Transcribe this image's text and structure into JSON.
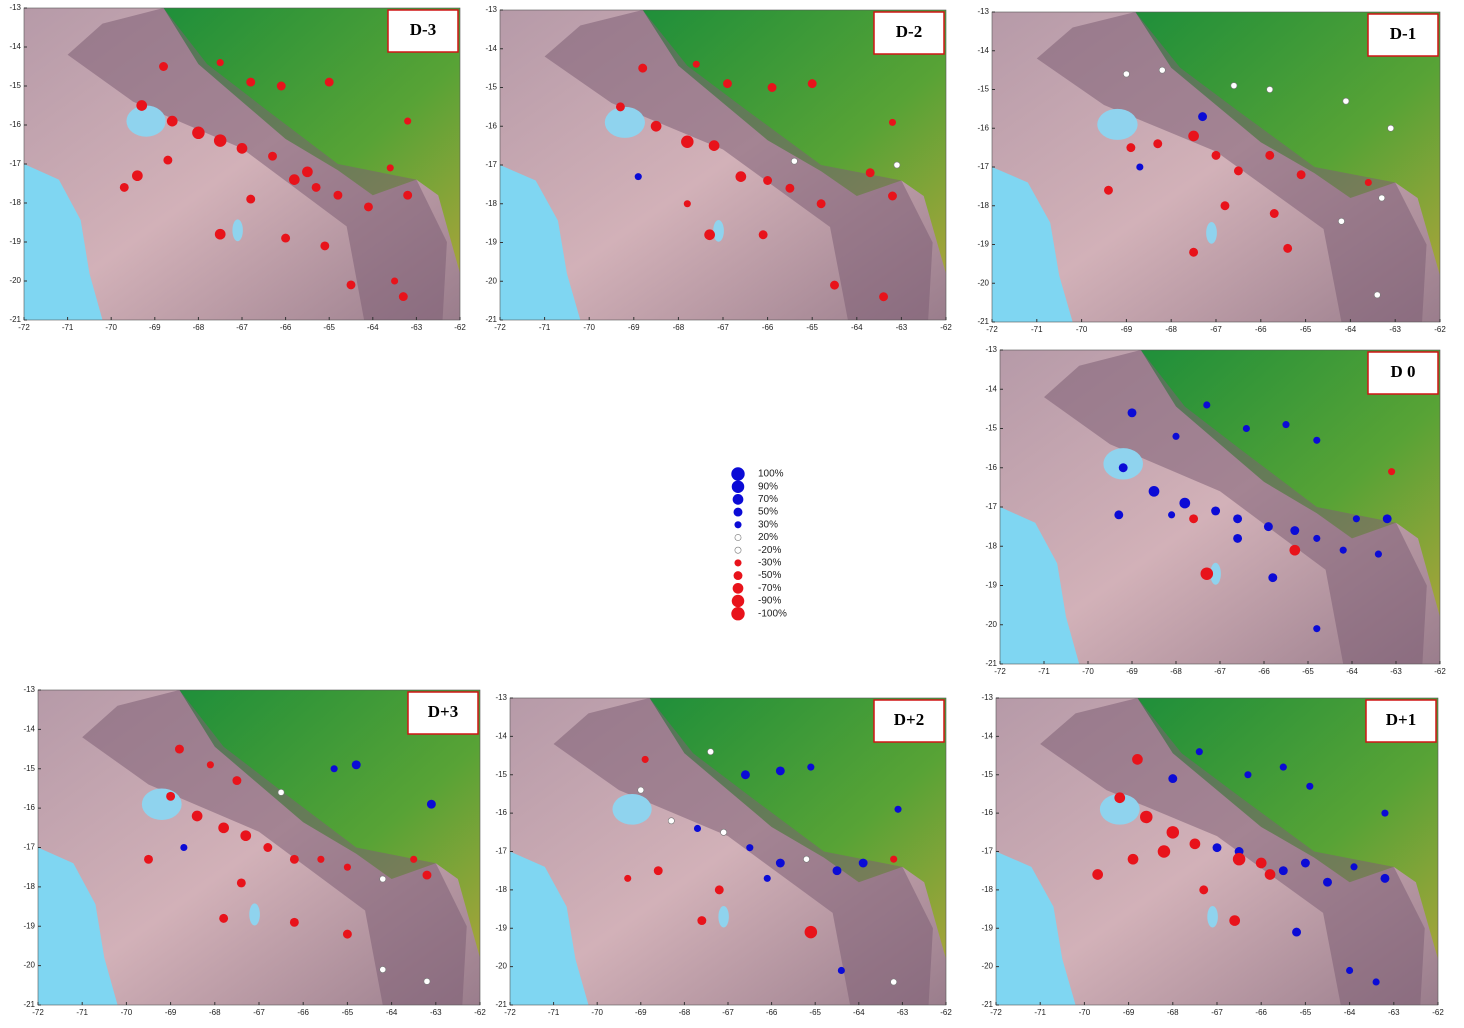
{
  "chart_data": [
    {
      "type": "scatter",
      "title": "D-3",
      "xlim": [
        -72,
        -62
      ],
      "ylim": [
        -21,
        -13
      ],
      "xticks": [
        -72,
        -71,
        -70,
        -69,
        -68,
        -67,
        -66,
        -65,
        -64,
        -63,
        -62
      ],
      "yticks": [
        -13,
        -14,
        -15,
        -16,
        -17,
        -18,
        -19,
        -20,
        -21
      ],
      "x": [
        -68.8,
        -67.5,
        -66.8,
        -66.1,
        -65,
        -63.2,
        -69.3,
        -68.6,
        -68,
        -67.5,
        -67,
        -66.3,
        -69.4,
        -68.7,
        -65.8,
        -65.3,
        -64.8,
        -63.6,
        -63.2,
        -69.7,
        -67.5,
        -66,
        -65.1,
        -64.5,
        -63.5,
        -63.3,
        -65.5,
        -66.8,
        -64.1
      ],
      "y": [
        -14.5,
        -14.4,
        -14.9,
        -15,
        -14.9,
        -15.9,
        -15.5,
        -15.9,
        -16.2,
        -16.4,
        -16.6,
        -16.8,
        -17.3,
        -16.9,
        -17.4,
        -17.6,
        -17.8,
        -17.1,
        -17.8,
        -17.6,
        -18.8,
        -18.9,
        -19.1,
        -20.1,
        -20,
        -20.4,
        -17.2,
        -17.9,
        -18.1
      ],
      "values": [
        -50,
        -30,
        -50,
        -50,
        -50,
        -30,
        -70,
        -70,
        -90,
        -90,
        -70,
        -50,
        -70,
        -50,
        -70,
        -50,
        -50,
        -30,
        -50,
        -50,
        -70,
        -50,
        -50,
        -50,
        -30,
        -50,
        -70,
        -50,
        -50
      ]
    },
    {
      "type": "scatter",
      "title": "D-2",
      "xlim": [
        -72,
        -62
      ],
      "ylim": [
        -21,
        -13
      ],
      "xticks": [
        -72,
        -71,
        -70,
        -69,
        -68,
        -67,
        -66,
        -65,
        -64,
        -63,
        -62
      ],
      "yticks": [
        -13,
        -14,
        -15,
        -16,
        -17,
        -18,
        -19,
        -20,
        -21
      ],
      "x": [
        -68.8,
        -67.6,
        -66.9,
        -65.9,
        -65,
        -63.2,
        -69.3,
        -68.5,
        -67.8,
        -67.2,
        -66.6,
        -66,
        -68.9,
        -65.4,
        -63.1,
        -65.5,
        -64.8,
        -63.7,
        -63.2,
        -67.3,
        -66.1,
        -64.5,
        -63.4,
        -67.8
      ],
      "y": [
        -14.5,
        -14.4,
        -14.9,
        -15,
        -14.9,
        -15.9,
        -15.5,
        -16,
        -16.4,
        -16.5,
        -17.3,
        -17.4,
        -17.3,
        -16.9,
        -17,
        -17.6,
        -18,
        -17.2,
        -17.8,
        -18.8,
        -18.8,
        -20.1,
        -20.4,
        -18
      ],
      "values": [
        -50,
        -30,
        -50,
        -50,
        -50,
        -30,
        -50,
        -70,
        -90,
        -70,
        -70,
        -50,
        30,
        20,
        20,
        -50,
        -50,
        -50,
        -50,
        -70,
        -50,
        -50,
        -50,
        -30
      ]
    },
    {
      "type": "scatter",
      "title": "D-1",
      "xlim": [
        -72,
        -62
      ],
      "ylim": [
        -21,
        -13
      ],
      "xticks": [
        -72,
        -71,
        -70,
        -69,
        -68,
        -67,
        -66,
        -65,
        -64,
        -63,
        -62
      ],
      "yticks": [
        -13,
        -14,
        -15,
        -16,
        -17,
        -18,
        -19,
        -20,
        -21
      ],
      "x": [
        -69,
        -68.2,
        -66.6,
        -65.8,
        -64.1,
        -63.1,
        -68.9,
        -68.3,
        -67.5,
        -67,
        -66.5,
        -65.8,
        -65.1,
        -63.6,
        -67.3,
        -68.7,
        -69.4,
        -66.8,
        -65.7,
        -64.2,
        -63.3,
        -63.4,
        -65.4,
        -67.5
      ],
      "y": [
        -14.6,
        -14.5,
        -14.9,
        -15,
        -15.3,
        -16,
        -16.5,
        -16.4,
        -16.2,
        -16.7,
        -17.1,
        -16.7,
        -17.2,
        -17.4,
        -15.7,
        -17,
        -17.6,
        -18,
        -18.2,
        -18.4,
        -17.8,
        -20.3,
        -19.1,
        -19.2
      ],
      "values": [
        20,
        20,
        20,
        20,
        20,
        20,
        -50,
        -50,
        -70,
        -50,
        -50,
        -50,
        -50,
        -30,
        50,
        30,
        -50,
        -50,
        -50,
        20,
        20,
        20,
        -50,
        -50
      ]
    },
    {
      "type": "scatter",
      "title": "D 0",
      "xlim": [
        -72,
        -62
      ],
      "ylim": [
        -21,
        -13
      ],
      "xticks": [
        -72,
        -71,
        -70,
        -69,
        -68,
        -67,
        -66,
        -65,
        -64,
        -63,
        -62
      ],
      "yticks": [
        -13,
        -14,
        -15,
        -16,
        -17,
        -18,
        -19,
        -20,
        -21
      ],
      "x": [
        -69,
        -68,
        -67.3,
        -66.4,
        -65.5,
        -64.8,
        -69.2,
        -68.5,
        -67.8,
        -67.1,
        -66.6,
        -65.9,
        -65.3,
        -64.8,
        -63.9,
        -63.2,
        -69.3,
        -68.1,
        -67.6,
        -66.6,
        -65.3,
        -64.2,
        -63.4,
        -65.8,
        -63.1,
        -64.8,
        -67.3
      ],
      "y": [
        -14.6,
        -15.2,
        -14.4,
        -15,
        -14.9,
        -15.3,
        -16,
        -16.6,
        -16.9,
        -17.1,
        -17.3,
        -17.5,
        -17.6,
        -17.8,
        -17.3,
        -17.3,
        -17.2,
        -17.2,
        -17.3,
        -17.8,
        -18.1,
        -18.1,
        -18.2,
        -18.8,
        -16.1,
        -20.1,
        -18.7
      ],
      "values": [
        50,
        30,
        30,
        30,
        30,
        30,
        50,
        70,
        70,
        50,
        50,
        50,
        50,
        30,
        30,
        50,
        50,
        30,
        -50,
        50,
        -70,
        30,
        30,
        50,
        -30,
        30,
        -90
      ]
    },
    {
      "type": "scatter",
      "title": "D+3",
      "xlim": [
        -72,
        -62
      ],
      "ylim": [
        -21,
        -13
      ],
      "xticks": [
        -72,
        -71,
        -70,
        -69,
        -68,
        -67,
        -66,
        -65,
        -64,
        -63,
        -62
      ],
      "yticks": [
        -13,
        -14,
        -15,
        -16,
        -17,
        -18,
        -19,
        -20,
        -21
      ],
      "x": [
        -68.8,
        -68.1,
        -67.5,
        -66.5,
        -65.3,
        -64.8,
        -63.1,
        -69,
        -68.4,
        -67.8,
        -67.3,
        -66.8,
        -66.2,
        -65.6,
        -65,
        -64.2,
        -63.5,
        -63.2,
        -68.7,
        -67.4,
        -67.8,
        -66.2,
        -65,
        -64.2,
        -63.2,
        -69.5
      ],
      "y": [
        -14.5,
        -14.9,
        -15.3,
        -15.6,
        -15,
        -14.9,
        -15.9,
        -15.7,
        -16.2,
        -16.5,
        -16.7,
        -17,
        -17.3,
        -17.3,
        -17.5,
        -17.8,
        -17.3,
        -17.7,
        -17,
        -17.9,
        -18.8,
        -18.9,
        -19.2,
        -20.1,
        -20.4,
        -17.3
      ],
      "values": [
        -50,
        -30,
        -50,
        20,
        30,
        50,
        50,
        -50,
        -70,
        -70,
        -70,
        -50,
        -50,
        -30,
        -30,
        20,
        -30,
        -50,
        30,
        -50,
        -50,
        -50,
        -50,
        20,
        20,
        -50
      ]
    },
    {
      "type": "scatter",
      "title": "D+2",
      "xlim": [
        -72,
        -62
      ],
      "ylim": [
        -21,
        -13
      ],
      "xticks": [
        -72,
        -71,
        -70,
        -69,
        -68,
        -67,
        -66,
        -65,
        -64,
        -63,
        -62
      ],
      "yticks": [
        -13,
        -14,
        -15,
        -16,
        -17,
        -18,
        -19,
        -20,
        -21
      ],
      "x": [
        -68.9,
        -67.4,
        -66.6,
        -65.8,
        -65.1,
        -63.1,
        -69,
        -68.3,
        -67.7,
        -67.1,
        -66.5,
        -65.8,
        -65.2,
        -64.5,
        -63.9,
        -63.2,
        -68.6,
        -69.3,
        -67.2,
        -66.1,
        -65.1,
        -64.4,
        -63.2,
        -67.6
      ],
      "y": [
        -14.6,
        -14.4,
        -15,
        -14.9,
        -14.8,
        -15.9,
        -15.4,
        -16.2,
        -16.4,
        -16.5,
        -16.9,
        -17.3,
        -17.2,
        -17.5,
        -17.3,
        -17.2,
        -17.5,
        -17.7,
        -18,
        -17.7,
        -19.1,
        -20.1,
        -20.4,
        -18.8
      ],
      "values": [
        -30,
        20,
        50,
        50,
        30,
        30,
        20,
        20,
        30,
        20,
        30,
        50,
        20,
        50,
        50,
        -30,
        -50,
        -30,
        -50,
        30,
        -90,
        30,
        20,
        -50
      ]
    },
    {
      "type": "scatter",
      "title": "D+1",
      "xlim": [
        -72,
        -62
      ],
      "ylim": [
        -21,
        -13
      ],
      "xticks": [
        -72,
        -71,
        -70,
        -69,
        -68,
        -67,
        -66,
        -65,
        -64,
        -63,
        -62
      ],
      "yticks": [
        -13,
        -14,
        -15,
        -16,
        -17,
        -18,
        -19,
        -20,
        -21
      ],
      "x": [
        -68.8,
        -68,
        -67.4,
        -66.3,
        -65.5,
        -64.9,
        -63.2,
        -69.2,
        -68.6,
        -68,
        -67.5,
        -67,
        -66.5,
        -66,
        -65.5,
        -65,
        -64.5,
        -63.9,
        -63.2,
        -69.7,
        -68.9,
        -68.2,
        -66.5,
        -65.8,
        -67.3,
        -66.6,
        -65.2,
        -64,
        -63.4
      ],
      "y": [
        -14.6,
        -15.1,
        -14.4,
        -15,
        -14.8,
        -15.3,
        -16,
        -15.6,
        -16.1,
        -16.5,
        -16.8,
        -16.9,
        -17,
        -17.3,
        -17.5,
        -17.3,
        -17.8,
        -17.4,
        -17.7,
        -17.6,
        -17.2,
        -17,
        -17.2,
        -17.6,
        -18,
        -18.8,
        -19.1,
        -20.1,
        -20.4
      ],
      "values": [
        -70,
        50,
        30,
        30,
        30,
        30,
        30,
        -70,
        -90,
        -90,
        -70,
        50,
        50,
        -70,
        50,
        50,
        50,
        30,
        50,
        -70,
        -70,
        -90,
        -90,
        -70,
        -50,
        -70,
        50,
        30,
        30
      ]
    }
  ],
  "legend": {
    "items": [
      {
        "value": 100,
        "label": "100%",
        "color": "#0b0bd6"
      },
      {
        "value": 90,
        "label": "90%",
        "color": "#0b0bd6"
      },
      {
        "value": 70,
        "label": "70%",
        "color": "#0b0bd6"
      },
      {
        "value": 50,
        "label": "50%",
        "color": "#0b0bd6"
      },
      {
        "value": 30,
        "label": "30%",
        "color": "#0b0bd6"
      },
      {
        "value": 20,
        "label": "20%",
        "color": "#ffffff"
      },
      {
        "value": -20,
        "label": "-20%",
        "color": "#ffffff"
      },
      {
        "value": -30,
        "label": "-30%",
        "color": "#e8131b"
      },
      {
        "value": -50,
        "label": "-50%",
        "color": "#e8131b"
      },
      {
        "value": -70,
        "label": "-70%",
        "color": "#e8131b"
      },
      {
        "value": -90,
        "label": "-90%",
        "color": "#e8131b"
      },
      {
        "value": -100,
        "label": "-100%",
        "color": "#e8131b"
      }
    ]
  }
}
